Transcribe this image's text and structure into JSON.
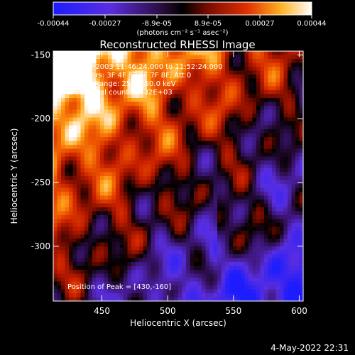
{
  "colorbar": {
    "ticks": [
      "-0.00044",
      "-0.00027",
      "-8.9e-05",
      "8.9e-05",
      "0.00027",
      "0.00044"
    ],
    "unit_label": "(photons cm⁻² s⁻¹ asec⁻²)",
    "range": [
      -0.00044,
      0.00044
    ]
  },
  "chart_data": {
    "type": "heatmap",
    "title": "Reconstructed RHESSI Image",
    "xlabel": "Heliocentric X (arcsec)",
    "ylabel": "Heliocentric Y (arcsec)",
    "xlim": [
      413,
      603
    ],
    "ylim": [
      -343,
      -147
    ],
    "x_ticks": [
      "450",
      "500",
      "550",
      "600"
    ],
    "x_tick_values": [
      450,
      500,
      550,
      600
    ],
    "y_ticks": [
      "-150",
      "-200",
      "-250",
      "-300"
    ],
    "y_tick_values": [
      -150,
      -200,
      -250,
      -300
    ],
    "annotations": {
      "time": "24-Aug-2003 11:46:24.000 to 11:52:24.000",
      "detectors": "Detectors: 3F 4F 5F 6F 7F 8F, Att 0",
      "energy": "Energy Range: 25.0 - 50.0 keV",
      "clean": "Clean     Total counts: 7.32E+03",
      "peak": "Position of Peak = [430,-160]"
    },
    "peak": [
      430,
      -160
    ]
  },
  "footer": {
    "date": "4-May-2022 22:31"
  }
}
